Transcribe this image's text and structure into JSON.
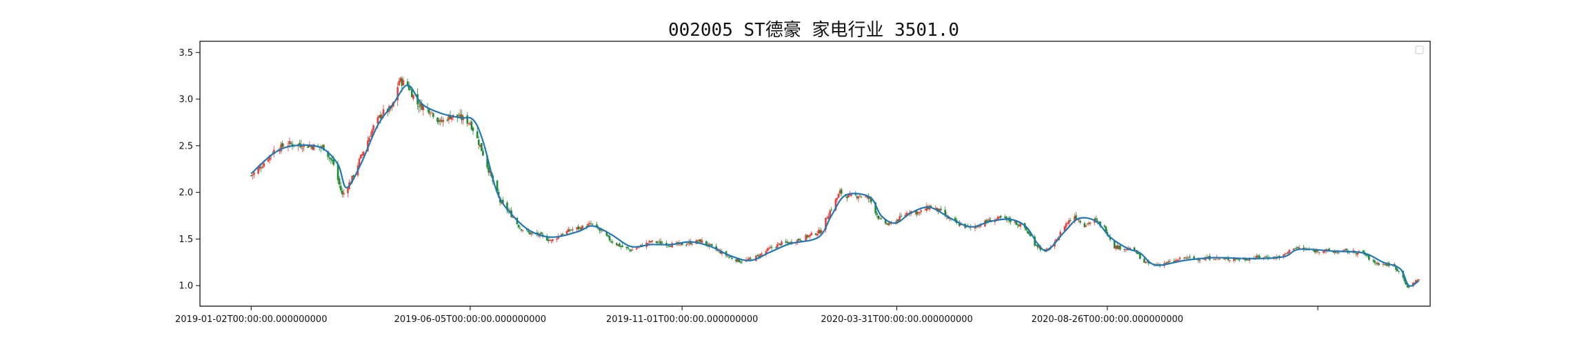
{
  "chart_data": {
    "type": "candlestick",
    "title": "002005 ST德豪 家电行业 3501.0",
    "xlabel": "",
    "ylabel": "",
    "ylim": [
      0.78,
      3.62
    ],
    "x_range": [
      "2018-11-27",
      "2021-04-10"
    ],
    "y_ticks": [
      "1.0",
      "1.5",
      "2.0",
      "2.5",
      "3.0",
      "3.5"
    ],
    "x_ticks": [
      {
        "date": "2019-01-02",
        "label": "2019-01-02T00:00:00.000000000"
      },
      {
        "date": "2019-06-05",
        "label": "2019-06-05T00:00:00.000000000"
      },
      {
        "date": "2019-11-01",
        "label": "2019-11-01T00:00:00.000000000"
      },
      {
        "date": "2020-03-31",
        "label": "2020-03-31T00:00:00.000000000"
      },
      {
        "date": "2020-08-26",
        "label": "2020-08-26T00:00:00.000000000"
      },
      {
        "date": "2021-01-21",
        "label": ""
      }
    ],
    "grid": false,
    "legend": "top-right",
    "colors": {
      "up": "#e8413b",
      "down": "#1e8a2e",
      "trend": "#1f77b4"
    },
    "close_series": [
      [
        "2019-01-02",
        2.18
      ],
      [
        "2019-01-10",
        2.3
      ],
      [
        "2019-01-18",
        2.45
      ],
      [
        "2019-01-28",
        2.52
      ],
      [
        "2019-02-12",
        2.5
      ],
      [
        "2019-02-22",
        2.48
      ],
      [
        "2019-03-01",
        2.3
      ],
      [
        "2019-03-07",
        1.97
      ],
      [
        "2019-03-14",
        2.15
      ],
      [
        "2019-03-22",
        2.45
      ],
      [
        "2019-03-29",
        2.7
      ],
      [
        "2019-04-04",
        2.85
      ],
      [
        "2019-04-11",
        2.9
      ],
      [
        "2019-04-16",
        3.2
      ],
      [
        "2019-04-22",
        3.15
      ],
      [
        "2019-04-29",
        2.95
      ],
      [
        "2019-05-08",
        2.88
      ],
      [
        "2019-05-15",
        2.75
      ],
      [
        "2019-05-22",
        2.82
      ],
      [
        "2019-05-29",
        2.8
      ],
      [
        "2019-06-05",
        2.75
      ],
      [
        "2019-06-12",
        2.5
      ],
      [
        "2019-06-19",
        2.2
      ],
      [
        "2019-06-26",
        1.9
      ],
      [
        "2019-07-03",
        1.78
      ],
      [
        "2019-07-10",
        1.62
      ],
      [
        "2019-07-17",
        1.56
      ],
      [
        "2019-07-24",
        1.54
      ],
      [
        "2019-08-01",
        1.48
      ],
      [
        "2019-08-08",
        1.55
      ],
      [
        "2019-08-15",
        1.6
      ],
      [
        "2019-08-22",
        1.62
      ],
      [
        "2019-08-29",
        1.66
      ],
      [
        "2019-09-05",
        1.58
      ],
      [
        "2019-09-12",
        1.48
      ],
      [
        "2019-09-19",
        1.42
      ],
      [
        "2019-09-26",
        1.38
      ],
      [
        "2019-10-10",
        1.47
      ],
      [
        "2019-10-17",
        1.46
      ],
      [
        "2019-10-24",
        1.44
      ],
      [
        "2019-10-31",
        1.44
      ],
      [
        "2019-11-07",
        1.46
      ],
      [
        "2019-11-14",
        1.48
      ],
      [
        "2019-11-21",
        1.42
      ],
      [
        "2019-11-28",
        1.36
      ],
      [
        "2019-12-05",
        1.3
      ],
      [
        "2019-12-12",
        1.26
      ],
      [
        "2019-12-19",
        1.28
      ],
      [
        "2019-12-26",
        1.33
      ],
      [
        "2020-01-02",
        1.4
      ],
      [
        "2020-01-09",
        1.45
      ],
      [
        "2020-01-16",
        1.46
      ],
      [
        "2020-01-23",
        1.5
      ],
      [
        "2020-02-06",
        1.58
      ],
      [
        "2020-02-13",
        1.8
      ],
      [
        "2020-02-20",
        2.0
      ],
      [
        "2020-02-27",
        1.95
      ],
      [
        "2020-03-05",
        1.97
      ],
      [
        "2020-03-12",
        1.93
      ],
      [
        "2020-03-19",
        1.7
      ],
      [
        "2020-03-26",
        1.65
      ],
      [
        "2020-04-02",
        1.72
      ],
      [
        "2020-04-09",
        1.8
      ],
      [
        "2020-04-16",
        1.78
      ],
      [
        "2020-04-23",
        1.85
      ],
      [
        "2020-04-30",
        1.8
      ],
      [
        "2020-05-08",
        1.7
      ],
      [
        "2020-05-15",
        1.65
      ],
      [
        "2020-05-22",
        1.62
      ],
      [
        "2020-05-29",
        1.66
      ],
      [
        "2020-06-05",
        1.7
      ],
      [
        "2020-06-12",
        1.72
      ],
      [
        "2020-06-19",
        1.7
      ],
      [
        "2020-06-29",
        1.62
      ],
      [
        "2020-07-06",
        1.45
      ],
      [
        "2020-07-13",
        1.36
      ],
      [
        "2020-07-20",
        1.45
      ],
      [
        "2020-07-27",
        1.65
      ],
      [
        "2020-08-03",
        1.75
      ],
      [
        "2020-08-10",
        1.65
      ],
      [
        "2020-08-17",
        1.7
      ],
      [
        "2020-08-24",
        1.62
      ],
      [
        "2020-08-31",
        1.42
      ],
      [
        "2020-09-07",
        1.4
      ],
      [
        "2020-09-14",
        1.38
      ],
      [
        "2020-09-21",
        1.25
      ],
      [
        "2020-09-28",
        1.22
      ],
      [
        "2020-10-12",
        1.26
      ],
      [
        "2020-10-19",
        1.3
      ],
      [
        "2020-10-26",
        1.29
      ],
      [
        "2020-11-02",
        1.29
      ],
      [
        "2020-11-09",
        1.3
      ],
      [
        "2020-11-16",
        1.28
      ],
      [
        "2020-11-23",
        1.29
      ],
      [
        "2020-11-30",
        1.28
      ],
      [
        "2020-12-07",
        1.3
      ],
      [
        "2020-12-14",
        1.31
      ],
      [
        "2020-12-21",
        1.3
      ],
      [
        "2020-12-28",
        1.32
      ],
      [
        "2021-01-04",
        1.41
      ],
      [
        "2021-01-11",
        1.39
      ],
      [
        "2021-01-18",
        1.37
      ],
      [
        "2021-01-25",
        1.38
      ],
      [
        "2021-02-01",
        1.36
      ],
      [
        "2021-02-08",
        1.37
      ],
      [
        "2021-02-22",
        1.35
      ],
      [
        "2021-03-01",
        1.25
      ],
      [
        "2021-03-08",
        1.23
      ],
      [
        "2021-03-15",
        1.22
      ],
      [
        "2021-03-22",
        1.1
      ],
      [
        "2021-03-25",
        0.97
      ],
      [
        "2021-03-30",
        1.04
      ],
      [
        "2021-04-02",
        1.07
      ]
    ],
    "trend_series": [
      [
        "2019-01-02",
        2.2
      ],
      [
        "2019-01-18",
        2.42
      ],
      [
        "2019-02-01",
        2.5
      ],
      [
        "2019-02-20",
        2.48
      ],
      [
        "2019-03-04",
        2.3
      ],
      [
        "2019-03-10",
        2.05
      ],
      [
        "2019-03-20",
        2.3
      ],
      [
        "2019-04-01",
        2.72
      ],
      [
        "2019-04-12",
        2.95
      ],
      [
        "2019-04-22",
        3.15
      ],
      [
        "2019-05-02",
        2.95
      ],
      [
        "2019-05-15",
        2.85
      ],
      [
        "2019-05-29",
        2.8
      ],
      [
        "2019-06-07",
        2.78
      ],
      [
        "2019-06-14",
        2.55
      ],
      [
        "2019-06-24",
        2.0
      ],
      [
        "2019-07-05",
        1.75
      ],
      [
        "2019-07-18",
        1.58
      ],
      [
        "2019-08-02",
        1.52
      ],
      [
        "2019-08-20",
        1.58
      ],
      [
        "2019-08-30",
        1.64
      ],
      [
        "2019-09-12",
        1.55
      ],
      [
        "2019-09-26",
        1.42
      ],
      [
        "2019-10-10",
        1.44
      ],
      [
        "2019-10-24",
        1.44
      ],
      [
        "2019-11-07",
        1.47
      ],
      [
        "2019-11-21",
        1.42
      ],
      [
        "2019-12-05",
        1.32
      ],
      [
        "2019-12-19",
        1.27
      ],
      [
        "2020-01-02",
        1.36
      ],
      [
        "2020-01-16",
        1.45
      ],
      [
        "2020-02-05",
        1.52
      ],
      [
        "2020-02-14",
        1.75
      ],
      [
        "2020-02-24",
        1.97
      ],
      [
        "2020-03-12",
        1.95
      ],
      [
        "2020-03-20",
        1.75
      ],
      [
        "2020-03-30",
        1.67
      ],
      [
        "2020-04-10",
        1.78
      ],
      [
        "2020-04-23",
        1.84
      ],
      [
        "2020-05-08",
        1.72
      ],
      [
        "2020-05-22",
        1.63
      ],
      [
        "2020-06-05",
        1.69
      ],
      [
        "2020-06-19",
        1.71
      ],
      [
        "2020-06-30",
        1.63
      ],
      [
        "2020-07-08",
        1.45
      ],
      [
        "2020-07-15",
        1.38
      ],
      [
        "2020-07-27",
        1.58
      ],
      [
        "2020-08-06",
        1.72
      ],
      [
        "2020-08-18",
        1.69
      ],
      [
        "2020-08-28",
        1.52
      ],
      [
        "2020-09-09",
        1.4
      ],
      [
        "2020-09-18",
        1.35
      ],
      [
        "2020-09-29",
        1.22
      ],
      [
        "2020-10-19",
        1.27
      ],
      [
        "2020-11-09",
        1.3
      ],
      [
        "2020-12-07",
        1.29
      ],
      [
        "2020-12-28",
        1.31
      ],
      [
        "2021-01-08",
        1.39
      ],
      [
        "2021-02-01",
        1.37
      ],
      [
        "2021-02-22",
        1.35
      ],
      [
        "2021-03-08",
        1.25
      ],
      [
        "2021-03-20",
        1.18
      ],
      [
        "2021-03-26",
        1.0
      ],
      [
        "2021-04-02",
        1.05
      ]
    ]
  }
}
